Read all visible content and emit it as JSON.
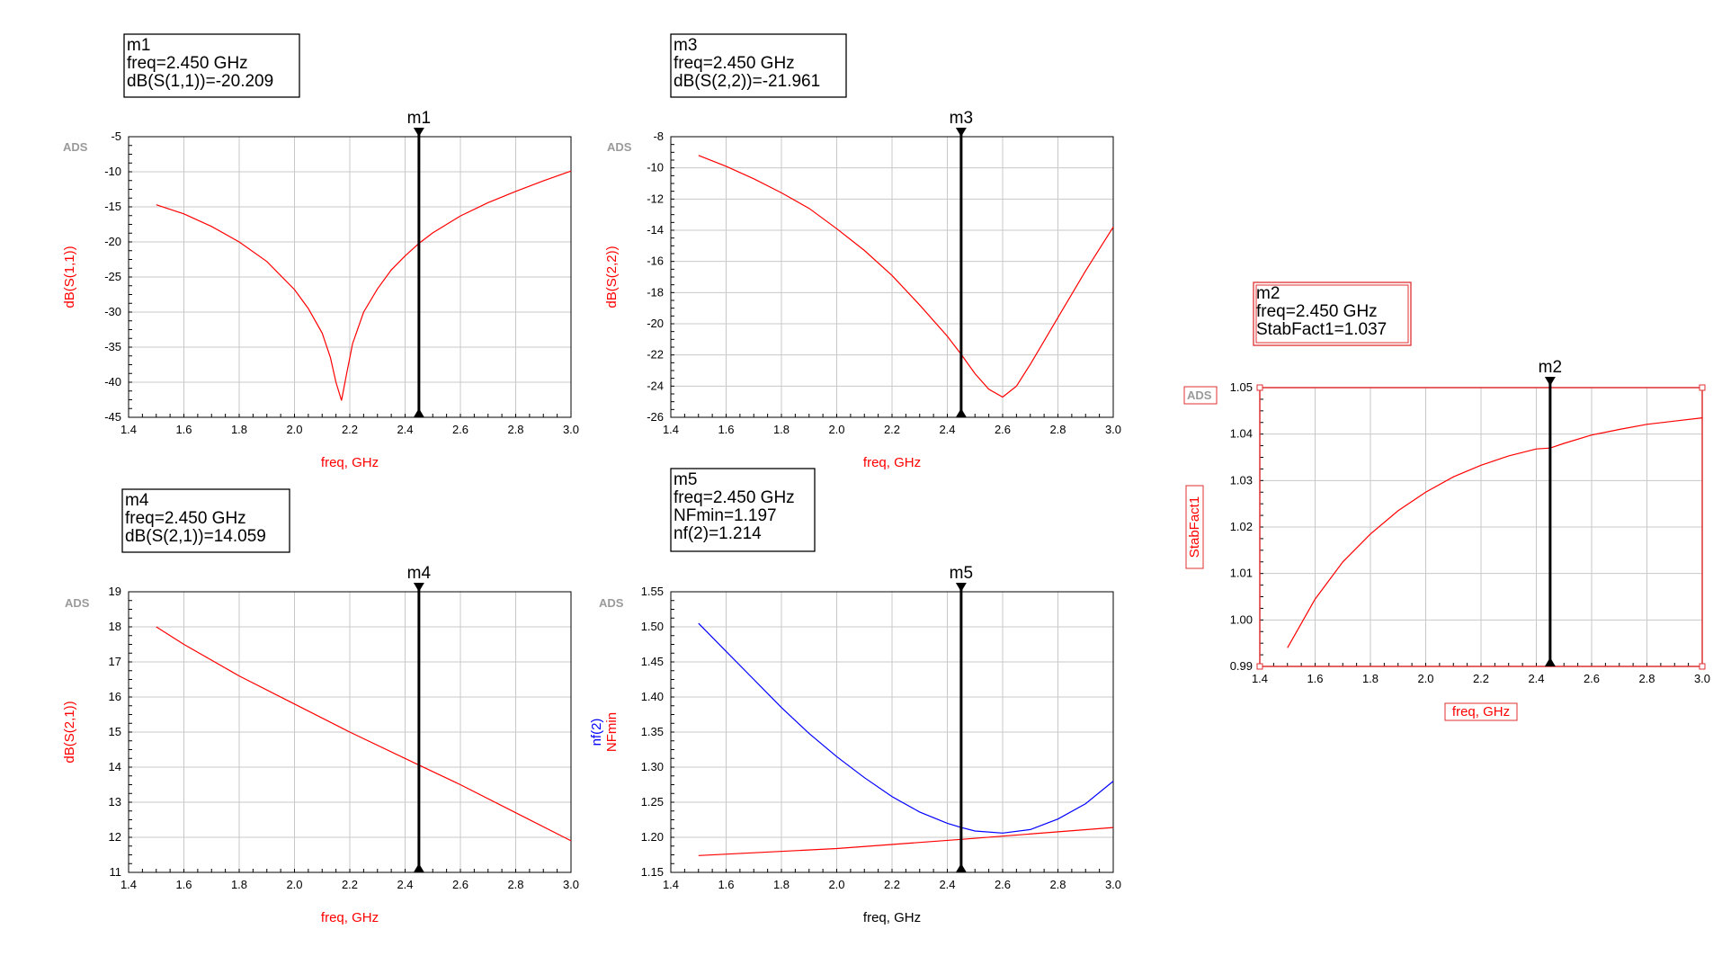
{
  "colors": {
    "red": "#ff0000",
    "blue": "#0000ff",
    "grid": "#c8c8c8",
    "frame": "#000000",
    "marker": "#000000"
  },
  "chart_data": [
    {
      "id": "s11",
      "type": "line",
      "watermark": "ADS",
      "xlabel": "freq, GHz",
      "ylabel": "dB(S(1,1))",
      "xlim": [
        1.4,
        3.0
      ],
      "ylim": [
        -45,
        -5
      ],
      "xticks": [
        "1.4",
        "1.6",
        "1.8",
        "2.0",
        "2.2",
        "2.4",
        "2.6",
        "2.8",
        "3.0"
      ],
      "yticks": [
        "-5",
        "-10",
        "-15",
        "-20",
        "-25",
        "-30",
        "-35",
        "-40",
        "-45"
      ],
      "marker": {
        "name": "m1",
        "x": 2.45,
        "lines": [
          "m1",
          "freq=2.450 GHz",
          "dB(S(1,1))=-20.209"
        ]
      },
      "series": [
        {
          "color": "#ff0000",
          "x": [
            1.5,
            1.6,
            1.7,
            1.8,
            1.9,
            2.0,
            2.05,
            2.1,
            2.13,
            2.15,
            2.17,
            2.19,
            2.21,
            2.25,
            2.3,
            2.35,
            2.4,
            2.45,
            2.5,
            2.6,
            2.7,
            2.8,
            2.9,
            3.0
          ],
          "y": [
            -14.7,
            -16.0,
            -17.8,
            -20.0,
            -22.8,
            -26.8,
            -29.5,
            -33.0,
            -36.5,
            -40.0,
            -42.6,
            -38.5,
            -34.5,
            -30.0,
            -26.7,
            -24.0,
            -22.0,
            -20.2,
            -18.7,
            -16.3,
            -14.4,
            -12.8,
            -11.3,
            -9.9
          ]
        }
      ]
    },
    {
      "id": "s22",
      "type": "line",
      "watermark": "ADS",
      "xlabel": "freq, GHz",
      "ylabel": "dB(S(2,2))",
      "xlim": [
        1.4,
        3.0
      ],
      "ylim": [
        -26,
        -8
      ],
      "xticks": [
        "1.4",
        "1.6",
        "1.8",
        "2.0",
        "2.2",
        "2.4",
        "2.6",
        "2.8",
        "3.0"
      ],
      "yticks": [
        "-8",
        "-10",
        "-12",
        "-14",
        "-16",
        "-18",
        "-20",
        "-22",
        "-24",
        "-26"
      ],
      "marker": {
        "name": "m3",
        "x": 2.45,
        "lines": [
          "m3",
          "freq=2.450 GHz",
          "dB(S(2,2))=-21.961"
        ]
      },
      "series": [
        {
          "color": "#ff0000",
          "x": [
            1.5,
            1.6,
            1.7,
            1.8,
            1.9,
            2.0,
            2.1,
            2.2,
            2.3,
            2.4,
            2.45,
            2.5,
            2.55,
            2.6,
            2.65,
            2.7,
            2.8,
            2.9,
            3.0
          ],
          "y": [
            -9.2,
            -9.9,
            -10.7,
            -11.6,
            -12.6,
            -13.9,
            -15.3,
            -16.9,
            -18.8,
            -20.8,
            -21.96,
            -23.2,
            -24.2,
            -24.7,
            -24.0,
            -22.6,
            -19.6,
            -16.6,
            -13.8
          ]
        }
      ]
    },
    {
      "id": "s21",
      "type": "line",
      "watermark": "ADS",
      "xlabel": "freq, GHz",
      "ylabel": "dB(S(2,1))",
      "xlim": [
        1.4,
        3.0
      ],
      "ylim": [
        11,
        19
      ],
      "xticks": [
        "1.4",
        "1.6",
        "1.8",
        "2.0",
        "2.2",
        "2.4",
        "2.6",
        "2.8",
        "3.0"
      ],
      "yticks": [
        "19",
        "18",
        "17",
        "16",
        "15",
        "14",
        "13",
        "12",
        "11"
      ],
      "marker": {
        "name": "m4",
        "x": 2.45,
        "lines": [
          "m4",
          "freq=2.450 GHz",
          "dB(S(2,1))=14.059"
        ]
      },
      "series": [
        {
          "color": "#ff0000",
          "x": [
            1.5,
            1.6,
            1.8,
            2.0,
            2.2,
            2.45,
            2.6,
            2.8,
            3.0
          ],
          "y": [
            18.0,
            17.5,
            16.6,
            15.8,
            15.0,
            14.06,
            13.5,
            12.7,
            11.9
          ]
        }
      ]
    },
    {
      "id": "nf",
      "type": "line",
      "watermark": "ADS",
      "xlabel": "freq, GHz",
      "ylabels": [
        {
          "text": "nf(2)",
          "color": "#0000ff"
        },
        {
          "text": "NFmin",
          "color": "#ff0000"
        }
      ],
      "xlim": [
        1.4,
        3.0
      ],
      "ylim": [
        1.15,
        1.55
      ],
      "xticks": [
        "1.4",
        "1.6",
        "1.8",
        "2.0",
        "2.2",
        "2.4",
        "2.6",
        "2.8",
        "3.0"
      ],
      "yticks": [
        "1.55",
        "1.50",
        "1.45",
        "1.40",
        "1.35",
        "1.30",
        "1.25",
        "1.20",
        "1.15"
      ],
      "marker": {
        "name": "m5",
        "x": 2.45,
        "lines": [
          "m5",
          "freq=2.450 GHz",
          "NFmin=1.197",
          "nf(2)=1.214"
        ]
      },
      "series": [
        {
          "color": "#0000ff",
          "x": [
            1.5,
            1.6,
            1.7,
            1.8,
            1.9,
            2.0,
            2.1,
            2.2,
            2.3,
            2.4,
            2.45,
            2.5,
            2.6,
            2.7,
            2.8,
            2.9,
            3.0
          ],
          "y": [
            1.505,
            1.465,
            1.425,
            1.385,
            1.348,
            1.315,
            1.285,
            1.258,
            1.236,
            1.22,
            1.214,
            1.209,
            1.206,
            1.211,
            1.226,
            1.248,
            1.28
          ]
        },
        {
          "color": "#ff0000",
          "x": [
            1.5,
            2.0,
            2.45,
            3.0
          ],
          "y": [
            1.174,
            1.184,
            1.197,
            1.214
          ]
        }
      ]
    },
    {
      "id": "stab",
      "type": "line",
      "watermark": "ADS",
      "xlabel": "freq, GHz",
      "ylabel": "StabFact1",
      "xlim": [
        1.4,
        3.0
      ],
      "ylim": [
        0.99,
        1.05
      ],
      "xticks": [
        "1.4",
        "1.6",
        "1.8",
        "2.0",
        "2.2",
        "2.4",
        "2.6",
        "2.8",
        "3.0"
      ],
      "yticks": [
        "1.05",
        "1.04",
        "1.03",
        "1.02",
        "1.01",
        "1.00",
        "0.99"
      ],
      "marker": {
        "name": "m2",
        "x": 2.45,
        "lines": [
          "m2",
          "freq=2.450 GHz",
          "StabFact1=1.037"
        ]
      },
      "series": [
        {
          "color": "#ff0000",
          "x": [
            1.5,
            1.6,
            1.7,
            1.8,
            1.9,
            2.0,
            2.1,
            2.2,
            2.3,
            2.4,
            2.45,
            2.5,
            2.6,
            2.7,
            2.8,
            2.9,
            3.0
          ],
          "y": [
            0.994,
            1.0045,
            1.0125,
            1.0185,
            1.0235,
            1.0275,
            1.0308,
            1.0333,
            1.0353,
            1.0368,
            1.037,
            1.038,
            1.0398,
            1.041,
            1.0421,
            1.0428,
            1.0435
          ]
        }
      ]
    }
  ]
}
